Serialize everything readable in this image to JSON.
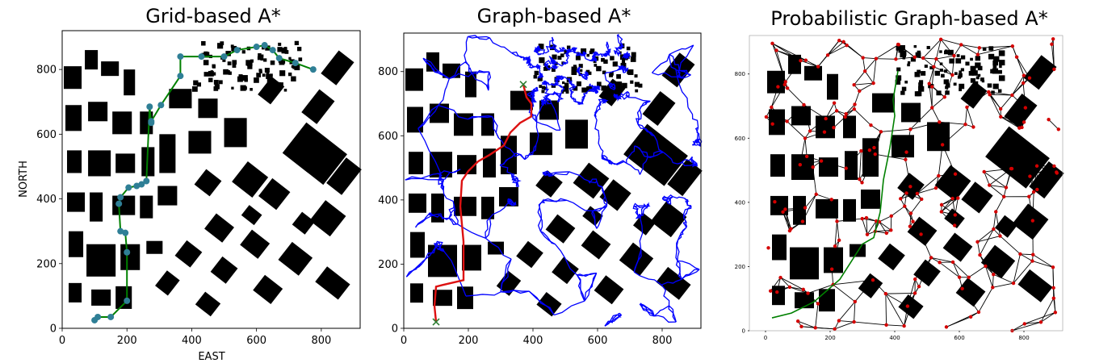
{
  "figure": {
    "colors": {
      "obstacle": "#000000",
      "free": "#ffffff",
      "path": "#008000",
      "waypoint": "#2f7f96",
      "edges_blue": "#0000ff",
      "route_red": "#dd1111",
      "edges_black": "#000000",
      "nodes_red": "#d40000",
      "markers_green": "#2e7d32"
    }
  },
  "chart_data": [
    {
      "type": "scatter",
      "title": "Grid-based A*",
      "xlabel": "EAST",
      "ylabel": "NORTH",
      "xlim": [
        0,
        920
      ],
      "ylim": [
        0,
        920
      ],
      "xticks": [
        "0",
        "200",
        "400",
        "600",
        "800"
      ],
      "yticks": [
        "0",
        "200",
        "400",
        "600",
        "800"
      ],
      "grid": false,
      "series": [
        {
          "role": "path",
          "x": [
            100,
            110,
            150,
            200,
            200,
            195,
            180,
            175,
            180,
            205,
            230,
            245,
            260,
            270,
            275,
            275,
            305,
            365,
            365,
            430,
            500,
            540,
            600,
            625,
            650,
            670,
            720,
            775
          ],
          "y": [
            25,
            35,
            35,
            85,
            235,
            295,
            300,
            385,
            405,
            435,
            440,
            445,
            455,
            685,
            635,
            640,
            690,
            780,
            840,
            840,
            840,
            860,
            870,
            875,
            860,
            835,
            820,
            800
          ]
        }
      ]
    },
    {
      "type": "scatter",
      "title": "Graph-based A*",
      "xlim": [
        0,
        920
      ],
      "ylim": [
        0,
        920
      ],
      "xticks": [
        "0",
        "200",
        "400",
        "600",
        "800"
      ],
      "yticks": [
        "0",
        "200",
        "400",
        "600",
        "800"
      ],
      "grid": false,
      "series": [
        {
          "role": "route",
          "x": [
            100,
            95,
            100,
            120,
            185,
            185,
            175,
            180,
            200,
            230,
            265,
            310,
            330,
            360,
            395,
            395,
            380,
            370
          ],
          "y": [
            20,
            70,
            130,
            135,
            150,
            270,
            380,
            460,
            490,
            520,
            540,
            570,
            610,
            640,
            660,
            700,
            720,
            760
          ]
        }
      ]
    },
    {
      "type": "scatter",
      "title": "Probabilistic Graph-based A*",
      "xlim": [
        -50,
        920
      ],
      "ylim": [
        0,
        920
      ],
      "xticks": [
        "0",
        "200",
        "400",
        "600",
        "800"
      ],
      "yticks": [
        "0",
        "200",
        "400",
        "600",
        "800"
      ],
      "grid": false,
      "series": [
        {
          "role": "path",
          "x": [
            20,
            80,
            150,
            230,
            300,
            335,
            355,
            365,
            385,
            400,
            395,
            410
          ],
          "y": [
            40,
            55,
            90,
            160,
            270,
            290,
            370,
            470,
            570,
            670,
            720,
            810
          ]
        }
      ]
    }
  ]
}
